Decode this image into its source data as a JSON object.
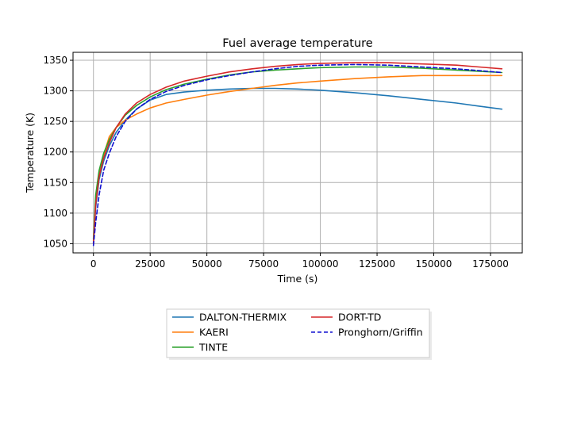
{
  "chart_data": {
    "type": "line",
    "title": "Fuel average temperature",
    "xlabel": "Time (s)",
    "ylabel": "Temperature (K)",
    "xlim": [
      -9000,
      189000
    ],
    "ylim": [
      1035,
      1363
    ],
    "xticks": [
      0,
      25000,
      50000,
      75000,
      100000,
      125000,
      150000,
      175000
    ],
    "yticks": [
      1050,
      1100,
      1150,
      1200,
      1250,
      1300,
      1350
    ],
    "grid": true,
    "legend_position": "below",
    "series": [
      {
        "name": "DALTON-THERMIX",
        "color": "#1f77b4",
        "dash": "solid",
        "points": [
          [
            0,
            1052
          ],
          [
            1000,
            1110
          ],
          [
            2500,
            1155
          ],
          [
            4500,
            1185
          ],
          [
            7000,
            1210
          ],
          [
            10000,
            1232
          ],
          [
            14000,
            1252
          ],
          [
            19000,
            1270
          ],
          [
            25000,
            1285
          ],
          [
            32000,
            1294
          ],
          [
            40000,
            1298
          ],
          [
            50000,
            1301
          ],
          [
            60000,
            1303
          ],
          [
            70000,
            1304
          ],
          [
            80000,
            1304
          ],
          [
            90000,
            1303
          ],
          [
            100000,
            1301
          ],
          [
            115000,
            1297
          ],
          [
            130000,
            1292
          ],
          [
            145000,
            1286
          ],
          [
            160000,
            1280
          ],
          [
            170000,
            1275
          ],
          [
            180000,
            1270
          ]
        ]
      },
      {
        "name": "KAERI",
        "color": "#ff7f0e",
        "dash": "solid",
        "points": [
          [
            0,
            1055
          ],
          [
            1000,
            1125
          ],
          [
            2500,
            1165
          ],
          [
            4500,
            1195
          ],
          [
            7000,
            1225
          ],
          [
            10000,
            1240
          ],
          [
            14000,
            1252
          ],
          [
            19000,
            1262
          ],
          [
            25000,
            1272
          ],
          [
            32000,
            1280
          ],
          [
            40000,
            1286
          ],
          [
            50000,
            1293
          ],
          [
            60000,
            1299
          ],
          [
            70000,
            1304
          ],
          [
            80000,
            1309
          ],
          [
            90000,
            1313
          ],
          [
            100000,
            1316
          ],
          [
            115000,
            1320
          ],
          [
            130000,
            1323
          ],
          [
            145000,
            1325
          ],
          [
            160000,
            1325
          ],
          [
            170000,
            1325
          ],
          [
            180000,
            1325
          ]
        ]
      },
      {
        "name": "TINTE",
        "color": "#2ca02c",
        "dash": "solid",
        "points": [
          [
            0,
            1058
          ],
          [
            1000,
            1130
          ],
          [
            2500,
            1170
          ],
          [
            4500,
            1198
          ],
          [
            7000,
            1220
          ],
          [
            10000,
            1240
          ],
          [
            14000,
            1260
          ],
          [
            19000,
            1276
          ],
          [
            25000,
            1290
          ],
          [
            32000,
            1302
          ],
          [
            40000,
            1311
          ],
          [
            50000,
            1319
          ],
          [
            60000,
            1326
          ],
          [
            70000,
            1331
          ],
          [
            80000,
            1334
          ],
          [
            90000,
            1336
          ],
          [
            100000,
            1338
          ],
          [
            115000,
            1339
          ],
          [
            130000,
            1339
          ],
          [
            145000,
            1337
          ],
          [
            160000,
            1334
          ],
          [
            170000,
            1332
          ],
          [
            180000,
            1330
          ]
        ]
      },
      {
        "name": "DORT-TD",
        "color": "#d62728",
        "dash": "solid",
        "points": [
          [
            0,
            1050
          ],
          [
            1000,
            1115
          ],
          [
            2500,
            1160
          ],
          [
            4500,
            1190
          ],
          [
            7000,
            1215
          ],
          [
            10000,
            1240
          ],
          [
            14000,
            1262
          ],
          [
            19000,
            1280
          ],
          [
            25000,
            1294
          ],
          [
            32000,
            1306
          ],
          [
            40000,
            1316
          ],
          [
            50000,
            1324
          ],
          [
            60000,
            1331
          ],
          [
            70000,
            1336
          ],
          [
            80000,
            1340
          ],
          [
            90000,
            1343
          ],
          [
            100000,
            1345
          ],
          [
            115000,
            1346
          ],
          [
            130000,
            1346
          ],
          [
            145000,
            1344
          ],
          [
            160000,
            1342
          ],
          [
            170000,
            1339
          ],
          [
            180000,
            1336
          ]
        ]
      },
      {
        "name": "Pronghorn/Griffin",
        "color": "#1010d0",
        "dash": "dashed",
        "points": [
          [
            0,
            1047
          ],
          [
            1000,
            1085
          ],
          [
            2500,
            1130
          ],
          [
            4500,
            1170
          ],
          [
            7000,
            1198
          ],
          [
            10000,
            1225
          ],
          [
            14000,
            1250
          ],
          [
            19000,
            1270
          ],
          [
            25000,
            1286
          ],
          [
            32000,
            1299
          ],
          [
            40000,
            1309
          ],
          [
            50000,
            1318
          ],
          [
            60000,
            1325
          ],
          [
            70000,
            1331
          ],
          [
            80000,
            1336
          ],
          [
            90000,
            1340
          ],
          [
            100000,
            1342
          ],
          [
            115000,
            1343
          ],
          [
            130000,
            1342
          ],
          [
            145000,
            1339
          ],
          [
            160000,
            1336
          ],
          [
            170000,
            1333
          ],
          [
            180000,
            1330
          ]
        ]
      }
    ]
  }
}
